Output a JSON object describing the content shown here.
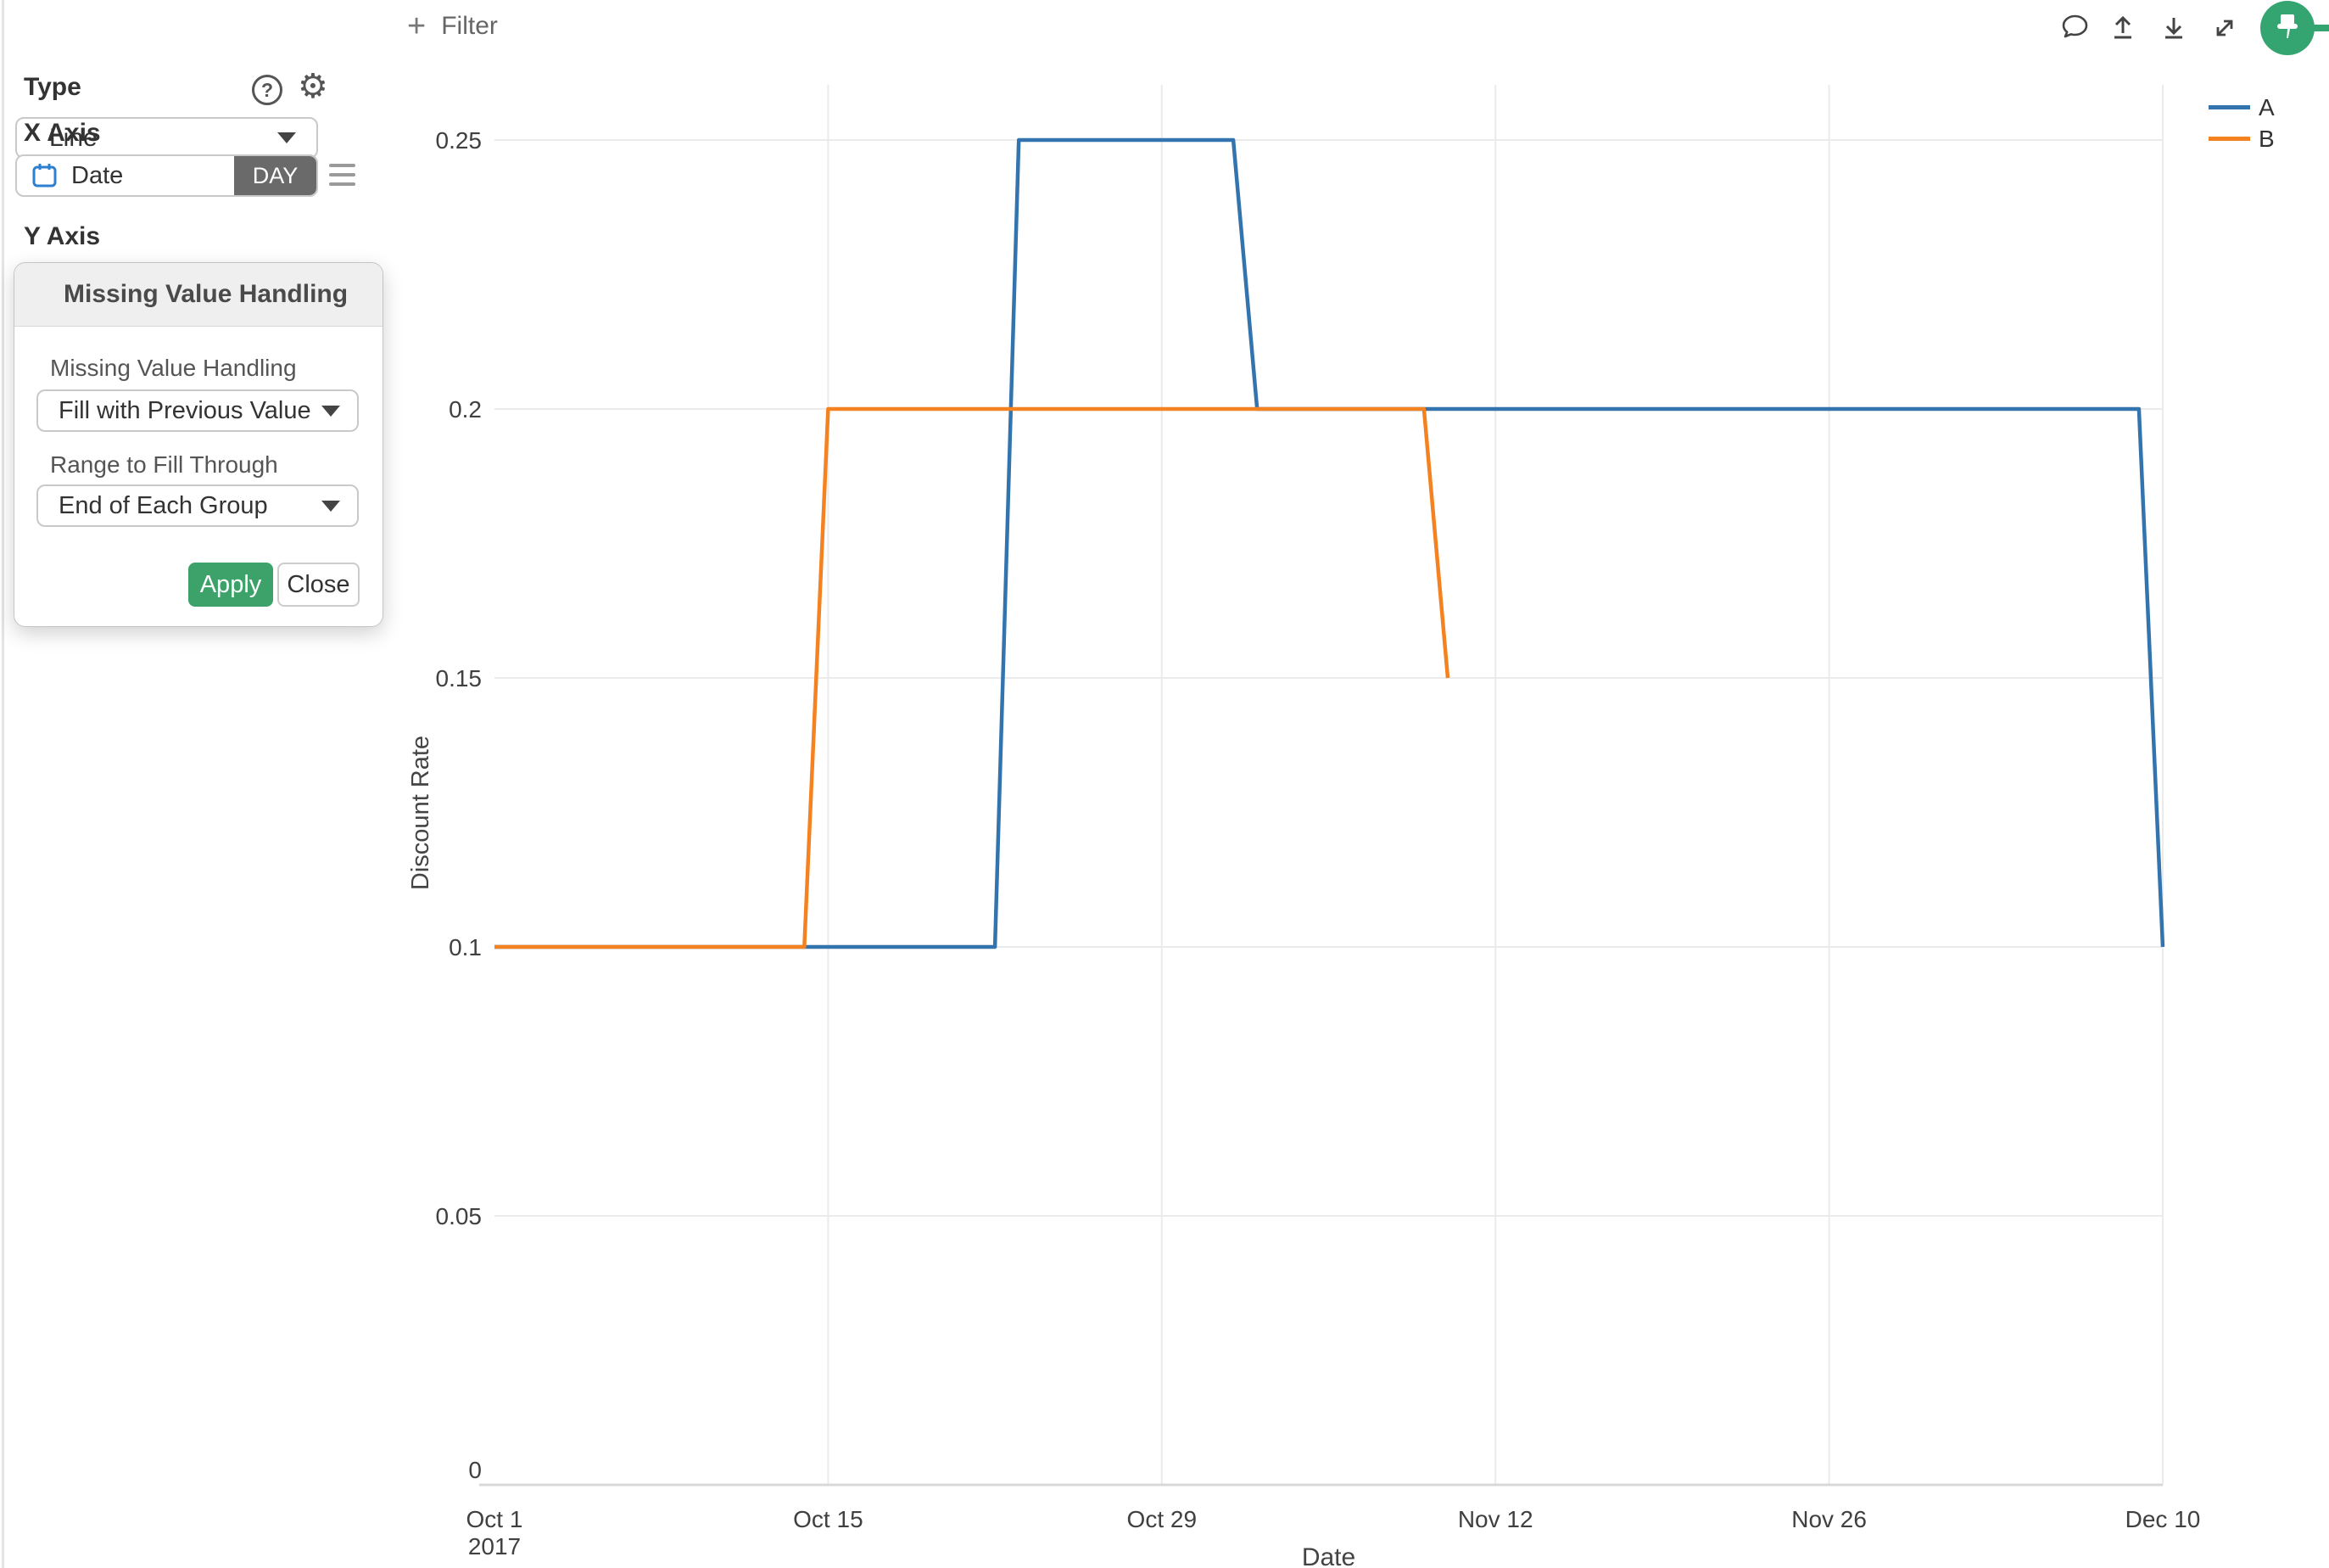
{
  "sidebar": {
    "type": {
      "label": "Type",
      "value": "Line"
    },
    "x_axis": {
      "label": "X Axis",
      "field": "Date",
      "granularity": "DAY"
    },
    "y_axis": {
      "label": "Y Axis"
    }
  },
  "dialog": {
    "title": "Missing Value Handling",
    "field1": {
      "label": "Missing Value Handling",
      "value": "Fill with Previous Value"
    },
    "field2": {
      "label": "Range to Fill Through",
      "value": "End of Each Group"
    },
    "apply_label": "Apply",
    "close_label": "Close"
  },
  "toolbar": {
    "plus": "+",
    "filter_label": "Filter",
    "icons": [
      "comment-icon",
      "upload-icon",
      "download-icon",
      "expand-icon",
      "pin-button"
    ]
  },
  "colors": {
    "apply_green": "#3ca269",
    "pin_green": "#34a571",
    "badge_gray": "#6a6a6a",
    "series_a_blue": "#3374af",
    "series_b_orange": "#f58220",
    "gridline": "#ebebeb",
    "axis_line": "#d8d8d8"
  },
  "chart_data": {
    "type": "line",
    "title": "",
    "xlabel": "Date",
    "ylabel": "Discount Rate",
    "x_tick_labels": [
      "Oct 1",
      "Oct 15",
      "Oct 29",
      "Nov 12",
      "Nov 26",
      "Dec 10"
    ],
    "x_tick_days": [
      0,
      14,
      28,
      42,
      56,
      70
    ],
    "x_first_tick_sub_label": "2017",
    "x_start_date": "Oct 1 2017",
    "y_ticks": [
      0,
      0.05,
      0.1,
      0.15,
      0.2,
      0.25
    ],
    "ylim": [
      0,
      0.26
    ],
    "grid": true,
    "legend_position": "top-right",
    "series": [
      {
        "name": "A",
        "color": "#3374af",
        "points_day_value": [
          [
            0,
            0.1
          ],
          [
            21,
            0.1
          ],
          [
            22,
            0.25
          ],
          [
            31,
            0.25
          ],
          [
            32,
            0.2
          ],
          [
            69,
            0.2
          ],
          [
            70,
            0.1
          ]
        ]
      },
      {
        "name": "B",
        "color": "#f58220",
        "points_day_value": [
          [
            0,
            0.1
          ],
          [
            13,
            0.1
          ],
          [
            14,
            0.2
          ],
          [
            39,
            0.2
          ],
          [
            40,
            0.15
          ]
        ]
      }
    ]
  }
}
